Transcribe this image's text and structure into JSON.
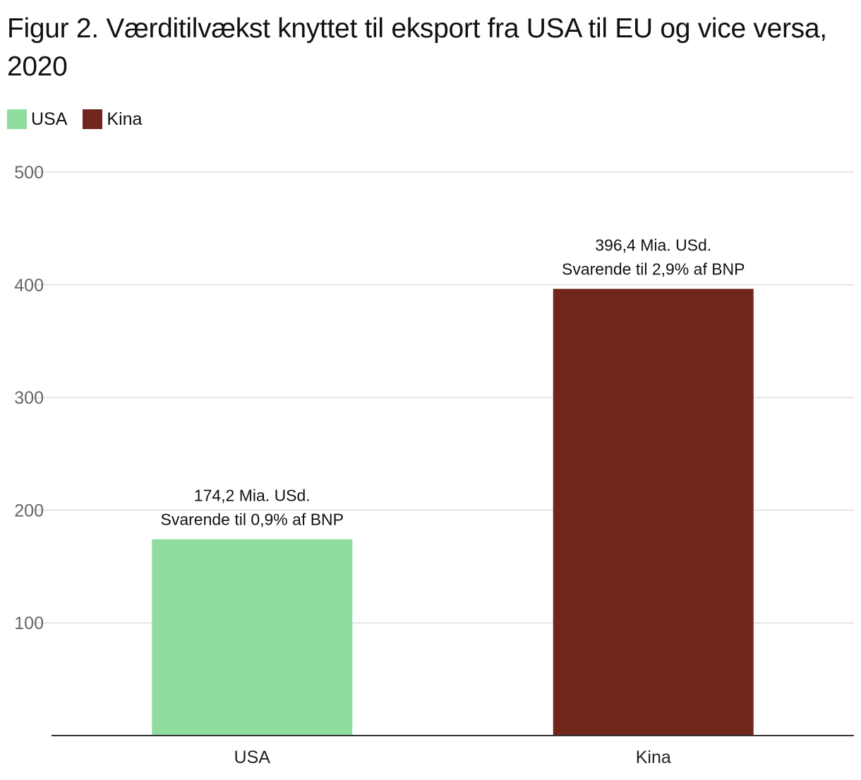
{
  "chart_data": {
    "type": "bar",
    "title": "Figur 2. Værditilvækst knyttet til eksport fra USA til EU og vice versa, 2020",
    "categories": [
      "USA",
      "Kina"
    ],
    "values": [
      174.2,
      396.4
    ],
    "colors": [
      "#8fdd9e",
      "#70261b"
    ],
    "legend": [
      {
        "label": "USA",
        "color": "#8fdd9e"
      },
      {
        "label": "Kina",
        "color": "#70261b"
      }
    ],
    "legend_position": "top-left",
    "data_labels": [
      {
        "line1": "174,2 Mia. USd.",
        "line2": "Svarende til 0,9% af BNP"
      },
      {
        "line1": "396,4 Mia. USd.",
        "line2": "Svarende til 2,9% af BNP"
      }
    ],
    "yticks": [
      100,
      200,
      300,
      400,
      500
    ],
    "ylim": [
      0,
      500
    ],
    "grid": true,
    "xlabel": "",
    "ylabel": ""
  }
}
